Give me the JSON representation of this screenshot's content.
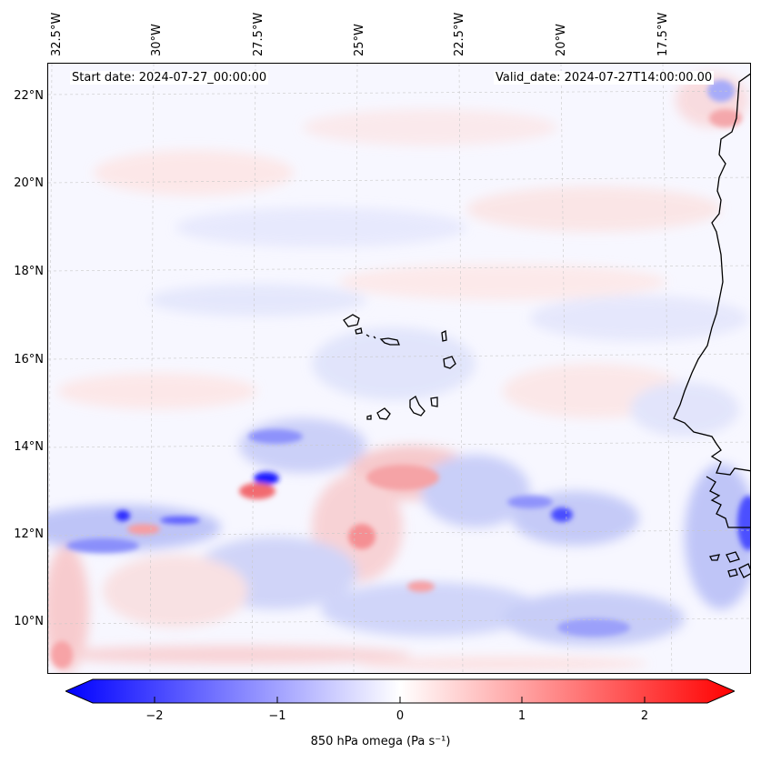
{
  "map": {
    "start_date": "Start date: 2024-07-27_00:00:00",
    "valid_date": "Valid_date: 2024-07-27T14:00:00.00",
    "lon_labels": [
      "32.5°W",
      "30°W",
      "27.5°W",
      "25°W",
      "22.5°W",
      "20°W",
      "17.5°W"
    ],
    "lat_labels": [
      "22°N",
      "20°N",
      "18°N",
      "16°N",
      "14°N",
      "12°N",
      "10°N"
    ],
    "colors": {
      "negative": "#0000ff",
      "zero": "#ffffff",
      "positive": "#ff0000",
      "coastline": "#000000",
      "gridline": "#bbbbbb"
    }
  },
  "colorbar": {
    "label": "850 hPa omega (Pa s⁻¹)",
    "ticks": [
      "−2",
      "−1",
      "0",
      "1",
      "2"
    ],
    "range": [
      -2.7,
      2.7
    ]
  }
}
